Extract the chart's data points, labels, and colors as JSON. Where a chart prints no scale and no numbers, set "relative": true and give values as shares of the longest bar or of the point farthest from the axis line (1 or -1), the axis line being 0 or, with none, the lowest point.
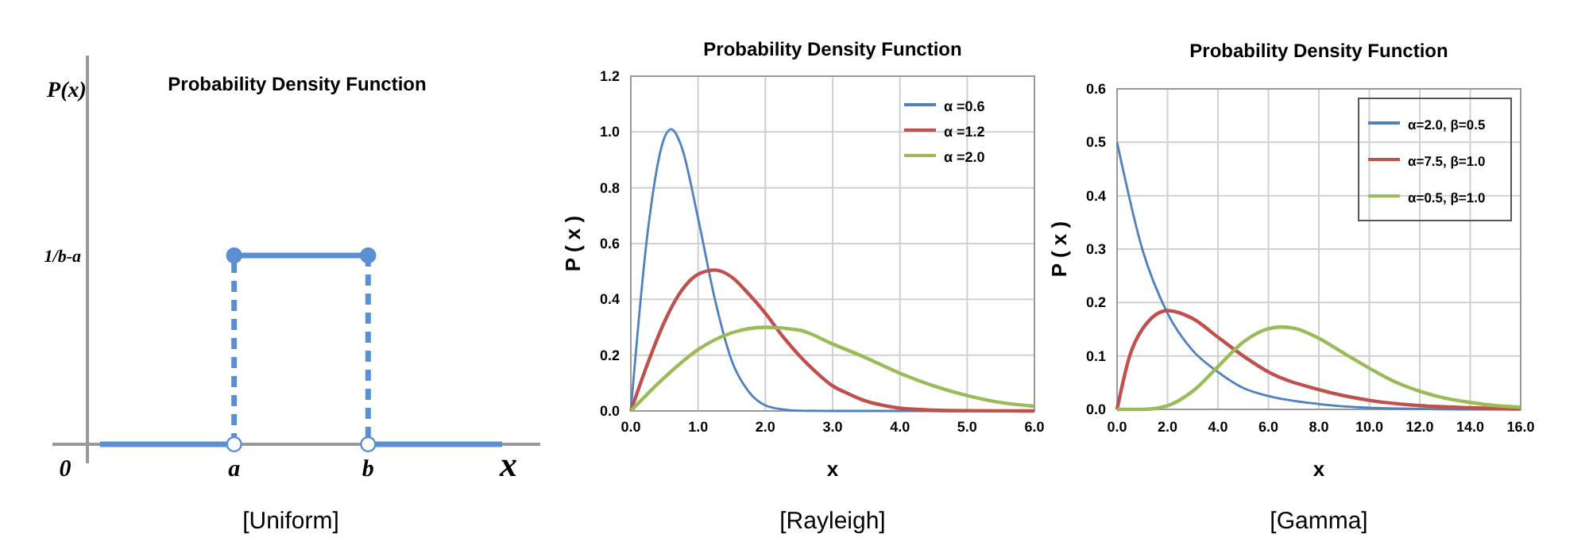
{
  "chart_data": [
    {
      "type": "step",
      "title": "Probability Density Function",
      "ylabel": "P(x)",
      "xlabel": "x",
      "categories": [
        null,
        "a",
        "b",
        null
      ],
      "relative": true,
      "grid": false,
      "legend": false,
      "marker": "circle",
      "line_style": "dashed",
      "annotations": [
        "1/b-a",
        "0",
        "[Uniform]"
      ],
      "series": [
        {
          "color": "#5b8fd1",
          "values": [
            0,
            1,
            0,
            0
          ],
          "marker": "none"
        },
        {
          "type": "scatter",
          "color": "#5b8fd1",
          "values": [
            null,
            1,
            1,
            null
          ]
        },
        {
          "type": "scatter",
          "color": "#ffffff",
          "values": [
            null,
            0,
            0,
            null
          ]
        }
      ]
    },
    {
      "type": "line",
      "title": "Probability Density Function",
      "ylabel": "P ( x )",
      "xlabel": "x",
      "xlim": [
        0,
        6
      ],
      "ylim": [
        0,
        1.2
      ],
      "xticks": [
        {
          "value": 0,
          "label": "0.0"
        },
        {
          "value": 1,
          "label": "1.0"
        },
        {
          "value": 2,
          "label": "2.0"
        },
        {
          "value": 3,
          "label": "3.0"
        },
        {
          "value": 4,
          "label": "4.0"
        },
        {
          "value": 5,
          "label": "5.0"
        },
        {
          "value": 6,
          "label": "6.0"
        }
      ],
      "yticks": [
        {
          "value": 0,
          "label": "0.0"
        },
        {
          "value": 0.2,
          "label": "0.2"
        },
        {
          "value": 0.4,
          "label": "0.4"
        },
        {
          "value": 0.6,
          "label": "0.6"
        },
        {
          "value": 0.8,
          "label": "0.8"
        },
        {
          "value": 1,
          "label": "1.0"
        },
        {
          "value": 1.2,
          "label": "1.2"
        }
      ],
      "grid": true,
      "legend": "top right",
      "annotations": [
        "[Rayleigh]"
      ],
      "series": [
        {
          "name": "α =0.6",
          "color": "#4f81bd",
          "x": [
            0,
            0.25,
            0.5,
            0.6,
            0.75,
            1,
            1.25,
            1.5,
            1.75,
            2,
            2.25,
            2.5,
            3,
            4,
            6
          ],
          "values": [
            0,
            0.64,
            0.98,
            1.01,
            0.95,
            0.69,
            0.4,
            0.18,
            0.07,
            0.02,
            0.006,
            0.001,
            0,
            0,
            0
          ]
        },
        {
          "name": "α =1.2",
          "color": "#c0504d",
          "x": [
            0,
            0.25,
            0.5,
            0.75,
            1,
            1.25,
            1.5,
            1.75,
            2,
            2.25,
            2.5,
            2.75,
            3,
            3.25,
            3.5,
            3.75,
            4,
            4.5,
            5,
            6
          ],
          "values": [
            0,
            0.17,
            0.32,
            0.43,
            0.49,
            0.505,
            0.48,
            0.42,
            0.35,
            0.27,
            0.2,
            0.14,
            0.09,
            0.06,
            0.035,
            0.02,
            0.01,
            0.003,
            0.001,
            0
          ]
        },
        {
          "name": "α =2.0",
          "color": "#9bbb59",
          "x": [
            0,
            0.5,
            1,
            1.5,
            2,
            2.5,
            3,
            3.5,
            4,
            4.5,
            5,
            5.5,
            6
          ],
          "values": [
            0,
            0.12,
            0.22,
            0.28,
            0.3,
            0.29,
            0.24,
            0.19,
            0.135,
            0.09,
            0.055,
            0.03,
            0.017
          ]
        }
      ]
    },
    {
      "type": "line",
      "title": "Probability Density Function",
      "ylabel": "P ( x )",
      "xlabel": "x",
      "xlim": [
        0,
        16
      ],
      "ylim": [
        0,
        0.6
      ],
      "xticks": [
        {
          "value": 0,
          "label": "0.0"
        },
        {
          "value": 2,
          "label": "2.0"
        },
        {
          "value": 4,
          "label": "4.0"
        },
        {
          "value": 6,
          "label": "6.0"
        },
        {
          "value": 8,
          "label": "8.0"
        },
        {
          "value": 10,
          "label": "10.0"
        },
        {
          "value": 12,
          "label": "12.0"
        },
        {
          "value": 14,
          "label": "14.0"
        },
        {
          "value": 16,
          "label": "16.0"
        }
      ],
      "yticks": [
        {
          "value": 0,
          "label": "0.0"
        },
        {
          "value": 0.1,
          "label": "0.1"
        },
        {
          "value": 0.2,
          "label": "0.2"
        },
        {
          "value": 0.3,
          "label": "0.3"
        },
        {
          "value": 0.4,
          "label": "0.4"
        },
        {
          "value": 0.5,
          "label": "0.5"
        },
        {
          "value": 0.6,
          "label": "0.6"
        }
      ],
      "grid": true,
      "legend": "top right",
      "annotations": [
        "[Gamma]"
      ],
      "series": [
        {
          "name": "α=2.0, β=0.5",
          "color": "#4f81bd",
          "x": [
            0,
            1,
            2,
            3,
            4,
            5,
            6,
            8,
            10,
            12,
            14,
            16
          ],
          "values": [
            0.5,
            0.3,
            0.18,
            0.11,
            0.07,
            0.04,
            0.025,
            0.01,
            0.003,
            0.001,
            0,
            0
          ]
        },
        {
          "name": "α=7.5, β=1.0",
          "color": "#c0504d",
          "x": [
            0,
            0.5,
            1,
            2,
            3,
            4,
            5,
            6,
            8,
            10,
            12,
            14,
            16
          ],
          "values": [
            0,
            0.1,
            0.15,
            0.185,
            0.17,
            0.135,
            0.1,
            0.07,
            0.037,
            0.017,
            0.007,
            0.003,
            0.001
          ]
        },
        {
          "name": "α=0.5, β=1.0",
          "color": "#9bbb59",
          "x": [
            0,
            1,
            2,
            3,
            4,
            5,
            6,
            6.5,
            7,
            8,
            9,
            10,
            11,
            12,
            13,
            14,
            15,
            16
          ],
          "values": [
            0,
            0,
            0.007,
            0.034,
            0.08,
            0.126,
            0.151,
            0.154,
            0.152,
            0.133,
            0.105,
            0.077,
            0.052,
            0.034,
            0.021,
            0.013,
            0.007,
            0.004
          ]
        }
      ]
    }
  ]
}
